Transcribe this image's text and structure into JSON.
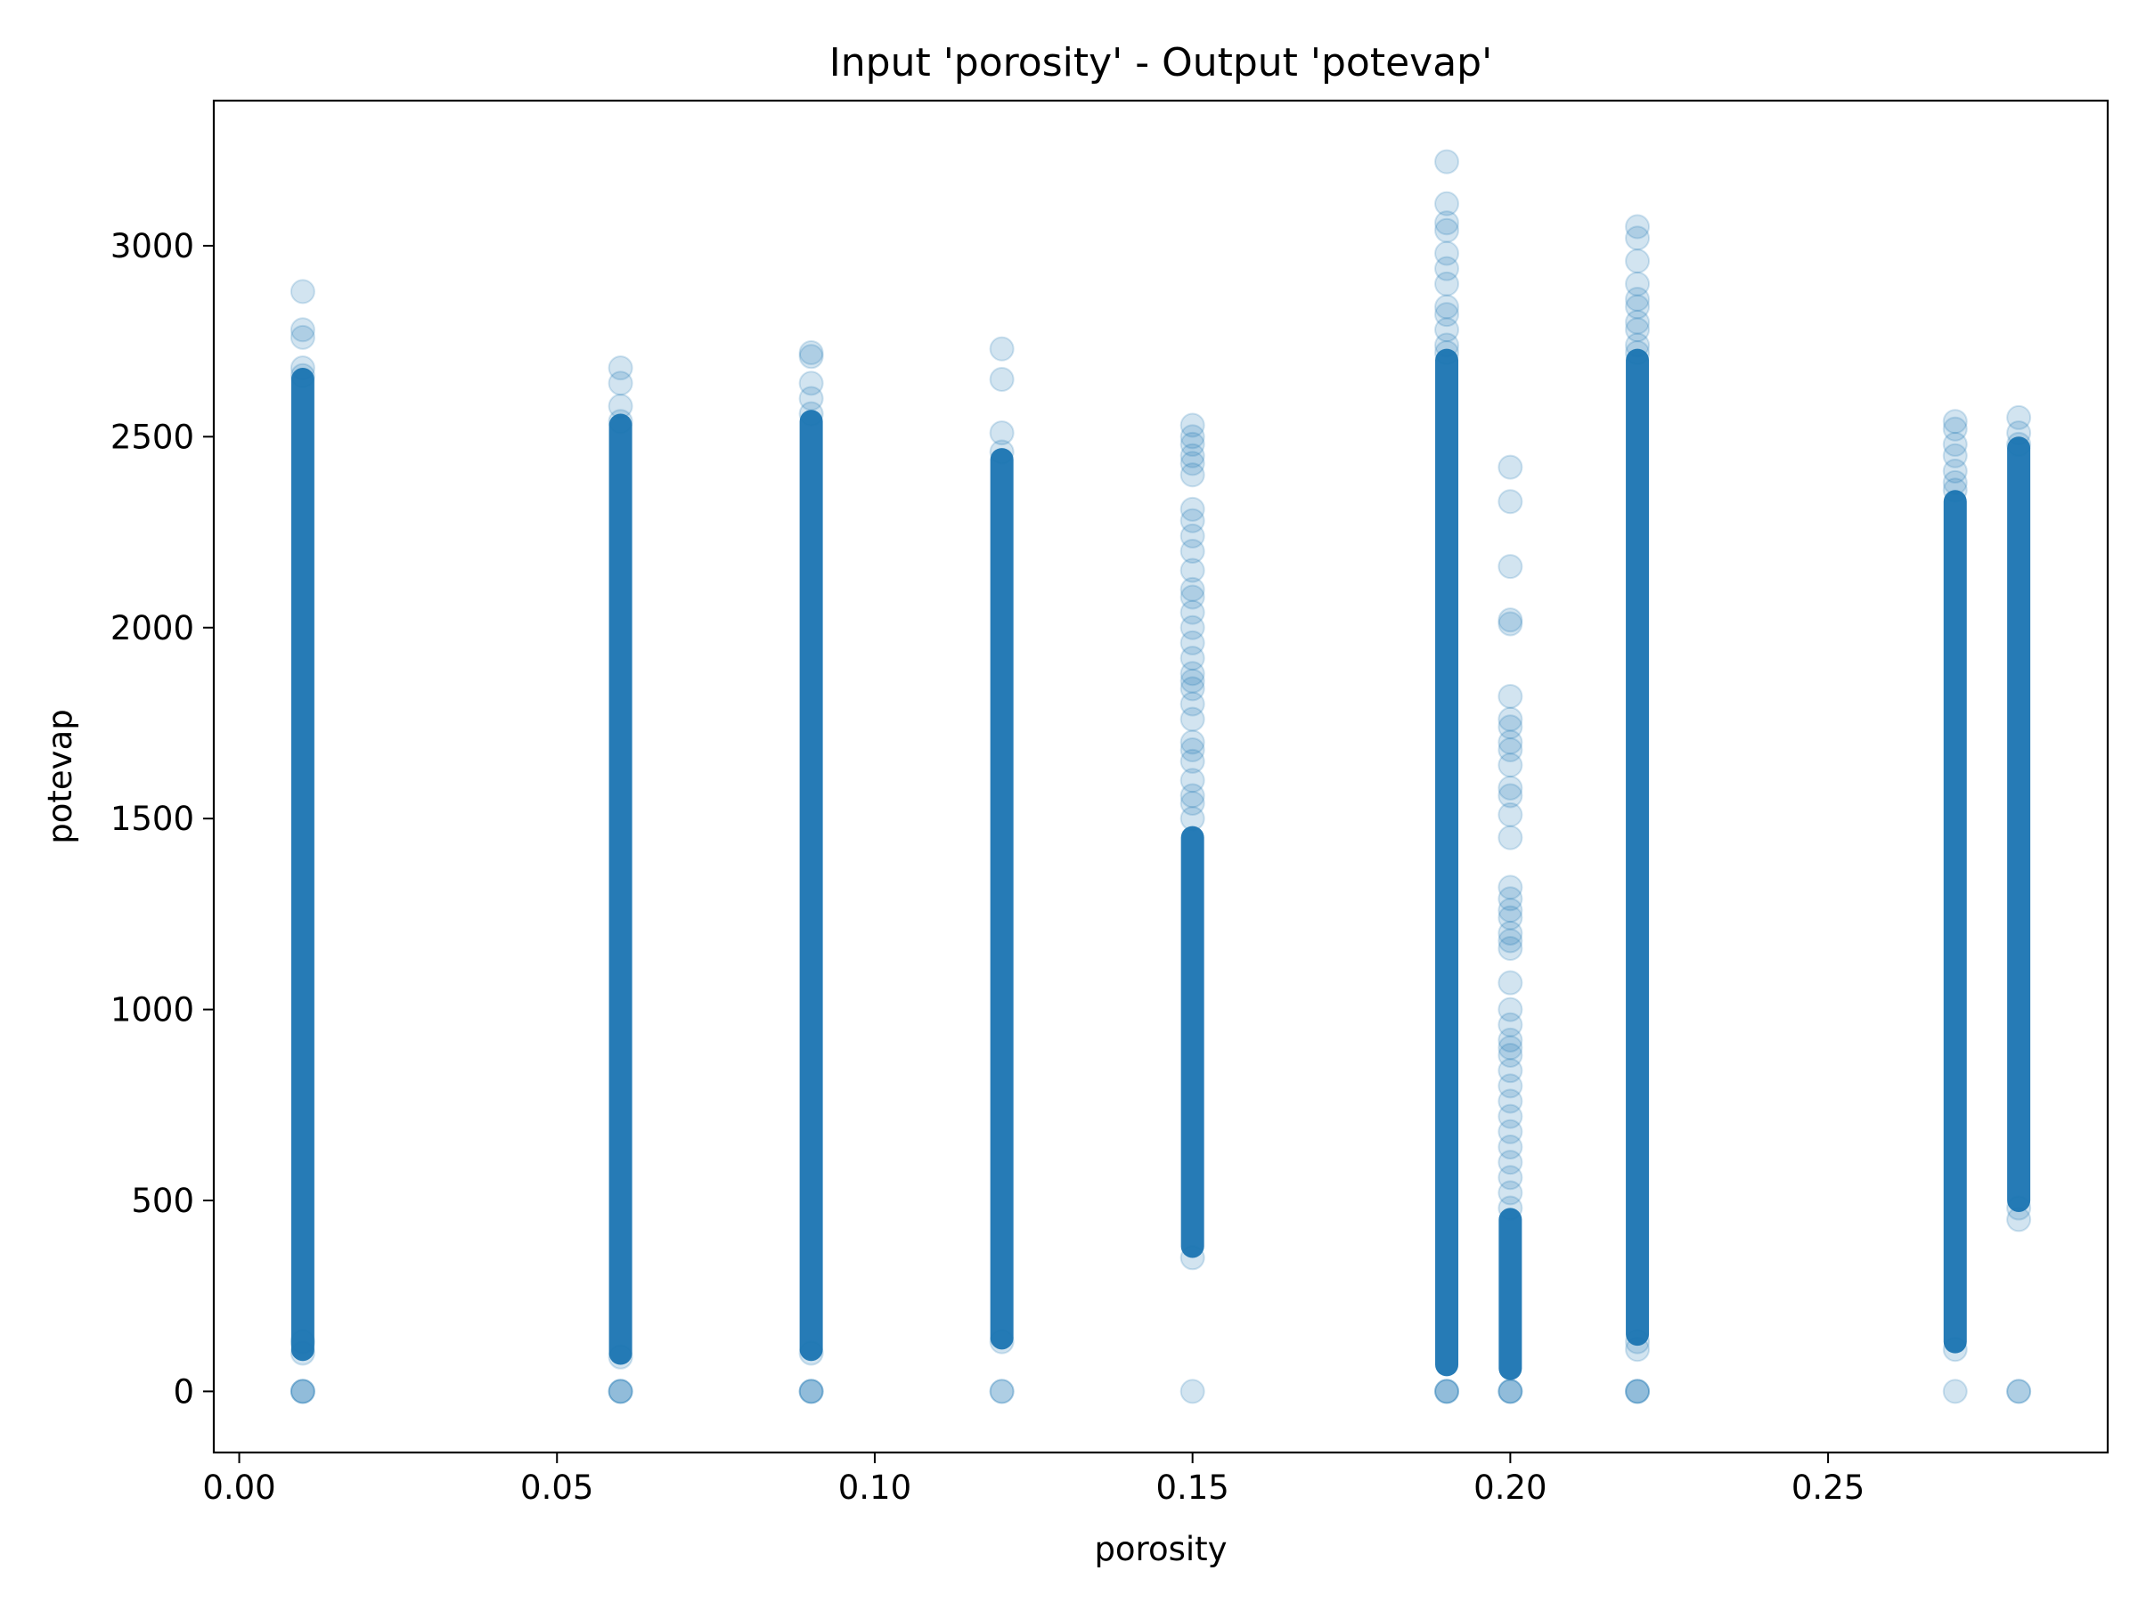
{
  "chart_data": {
    "type": "scatter",
    "title": "Input 'porosity' - Output 'potevap'",
    "xlabel": "porosity",
    "ylabel": "potevap",
    "xlim": [
      -0.004,
      0.294
    ],
    "ylim": [
      -160,
      3380
    ],
    "xticks": [
      0.0,
      0.05,
      0.1,
      0.15,
      0.2,
      0.25
    ],
    "xtick_labels": [
      "0.00",
      "0.05",
      "0.10",
      "0.15",
      "0.20",
      "0.25"
    ],
    "yticks": [
      0,
      500,
      1000,
      1500,
      2000,
      2500,
      3000
    ],
    "ytick_labels": [
      "0",
      "500",
      "1000",
      "1500",
      "2000",
      "2500",
      "3000"
    ],
    "grid": false,
    "marker_color": "#1f77b4",
    "marker_alpha": 0.2,
    "series": [
      {
        "x": 0.01,
        "dense_range": [
          110,
          2650
        ],
        "y": [
          0,
          0,
          0,
          100,
          130,
          2660,
          2680,
          2760,
          2780,
          2880
        ]
      },
      {
        "x": 0.06,
        "dense_range": [
          100,
          2530
        ],
        "y": [
          0,
          0,
          0,
          90,
          2540,
          2580,
          2640,
          2680
        ]
      },
      {
        "x": 0.09,
        "dense_range": [
          110,
          2540
        ],
        "y": [
          0,
          0,
          0,
          100,
          2560,
          2600,
          2640,
          2710,
          2720
        ]
      },
      {
        "x": 0.12,
        "dense_range": [
          140,
          2440
        ],
        "y": [
          0,
          0,
          130,
          2460,
          2510,
          2650,
          2730
        ]
      },
      {
        "x": 0.15,
        "dense_range": [
          380,
          1450
        ],
        "y": [
          0,
          350,
          1500,
          1540,
          1560,
          1600,
          1650,
          1680,
          1700,
          1760,
          1800,
          1840,
          1860,
          1880,
          1920,
          1960,
          2000,
          2040,
          2080,
          2100,
          2150,
          2200,
          2240,
          2280,
          2310,
          2400,
          2430,
          2450,
          2480,
          2500,
          2530
        ]
      },
      {
        "x": 0.19,
        "dense_range": [
          70,
          2700
        ],
        "y": [
          0,
          0,
          0,
          2720,
          2740,
          2780,
          2820,
          2840,
          2900,
          2940,
          2980,
          3040,
          3060,
          3110,
          3220
        ]
      },
      {
        "x": 0.2,
        "dense_range": [
          60,
          450
        ],
        "y": [
          0,
          0,
          0,
          480,
          520,
          560,
          600,
          640,
          680,
          720,
          760,
          800,
          840,
          880,
          900,
          920,
          960,
          1000,
          1070,
          1160,
          1180,
          1200,
          1240,
          1260,
          1290,
          1320,
          1450,
          1510,
          1560,
          1580,
          1640,
          1680,
          1700,
          1740,
          1760,
          1820,
          2010,
          2020,
          2160,
          2330,
          2420
        ]
      },
      {
        "x": 0.22,
        "dense_range": [
          150,
          2700
        ],
        "y": [
          0,
          0,
          0,
          110,
          130,
          2720,
          2740,
          2780,
          2800,
          2840,
          2860,
          2900,
          2960,
          3020,
          3050
        ]
      },
      {
        "x": 0.27,
        "dense_range": [
          130,
          2330
        ],
        "y": [
          0,
          110,
          2360,
          2380,
          2410,
          2450,
          2480,
          2520,
          2540
        ]
      },
      {
        "x": 0.28,
        "dense_range": [
          500,
          2470
        ],
        "y": [
          0,
          0,
          450,
          480,
          2480,
          2510,
          2550
        ]
      }
    ]
  }
}
